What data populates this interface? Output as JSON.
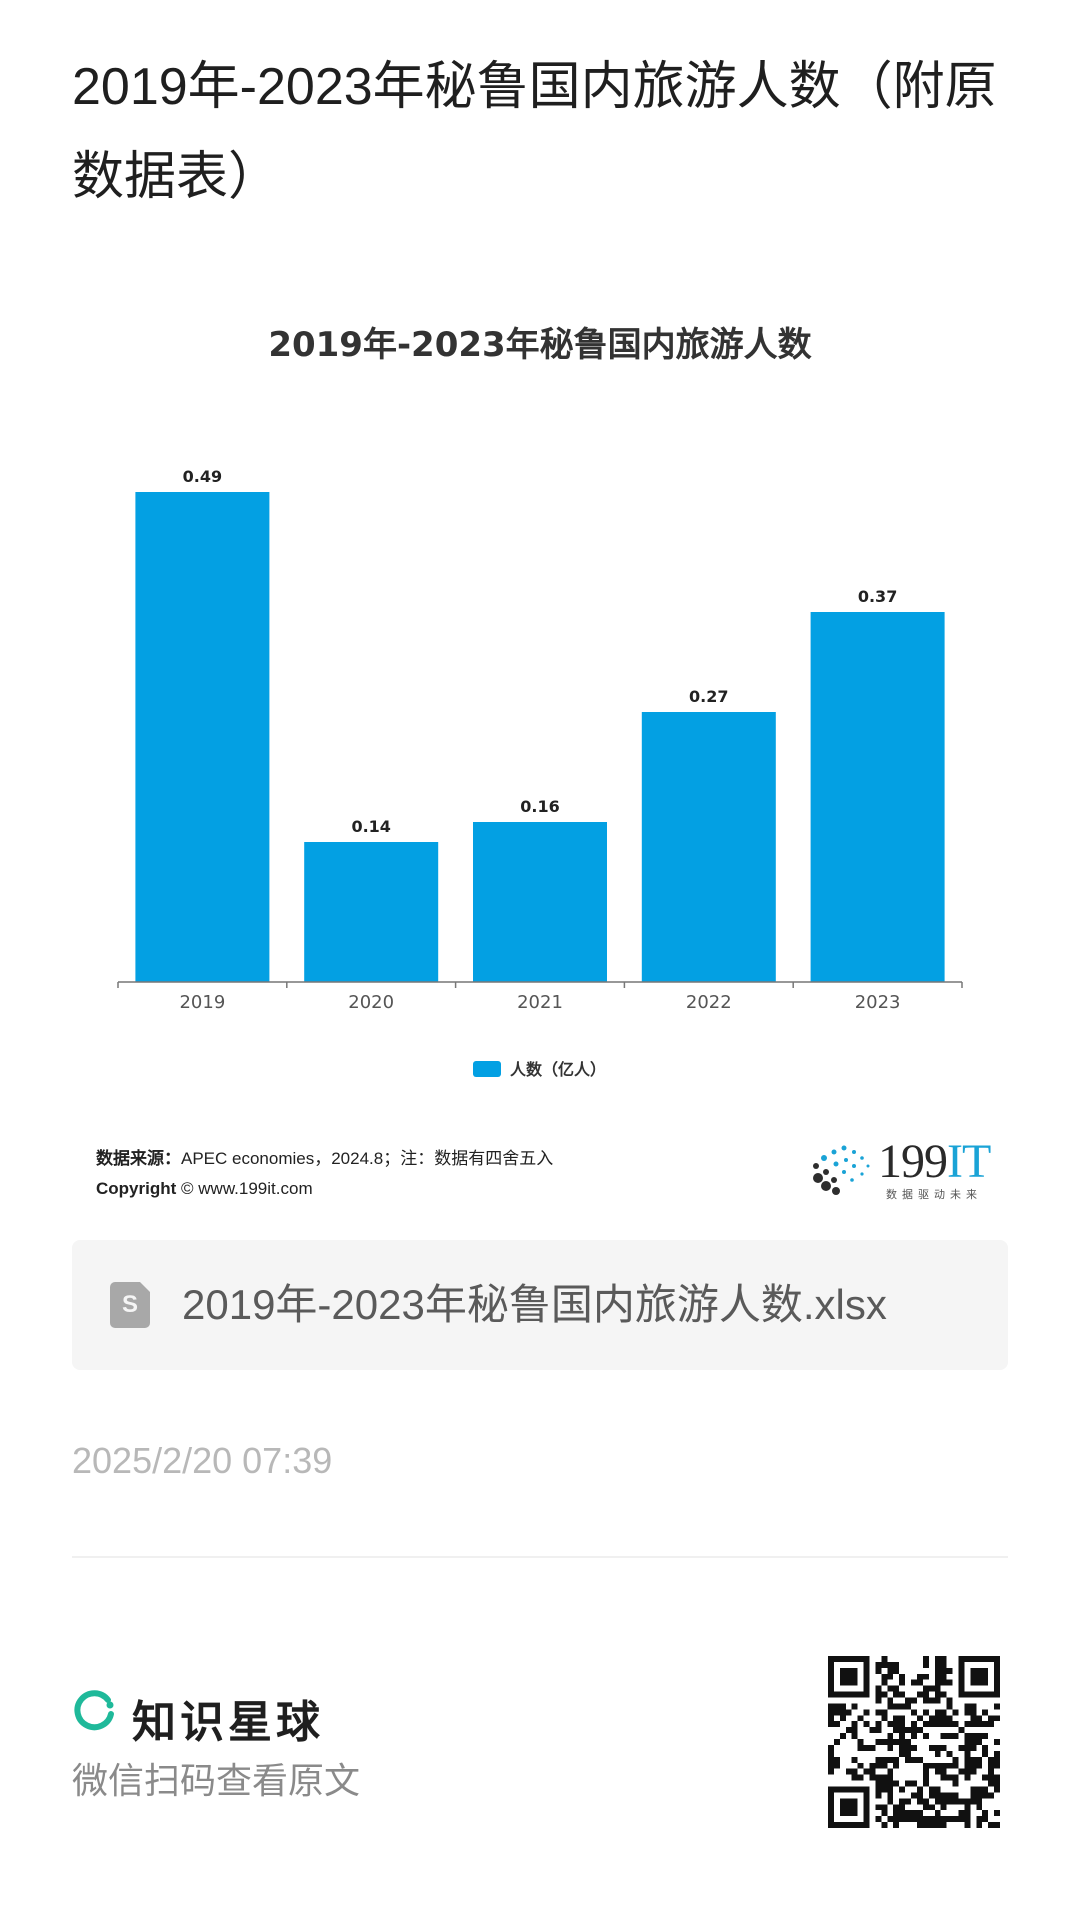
{
  "page": {
    "title": "2019年-2023年秘鲁国内旅游人数（附原数据表）"
  },
  "chart_data": {
    "type": "bar",
    "title": "2019年-2023年秘鲁国内旅游人数",
    "categories": [
      "2019",
      "2020",
      "2021",
      "2022",
      "2023"
    ],
    "series": [
      {
        "name": "人数（亿人）",
        "values": [
          0.49,
          0.14,
          0.16,
          0.27,
          0.37
        ]
      }
    ],
    "data_labels": [
      "0.49",
      "0.14",
      "0.16",
      "0.27",
      "0.37"
    ],
    "ylim": [
      0,
      0.5
    ],
    "grid": false,
    "legend": "bottom-center",
    "bar_color": "#03a0e3"
  },
  "source": {
    "label": "数据来源：",
    "text": "APEC economies，2024.8；注：数据有四舍五入",
    "copyright_label": "Copyright",
    "copyright_symbol": "©",
    "copyright_url": "www.199it.com"
  },
  "logo": {
    "text_main": "199",
    "text_accent": "IT",
    "tagline": "数据驱动未来"
  },
  "file": {
    "icon": "spreadsheet-file-icon",
    "icon_letter": "S",
    "name": "2019年-2023年秘鲁国内旅游人数.xlsx"
  },
  "meta": {
    "date": "2025/2/20 07:39"
  },
  "footer": {
    "brand_name": "知识星球",
    "brand_icon": "ring-logo-icon",
    "cta": "微信扫码查看原文",
    "qr_icon": "qr-code-icon"
  },
  "colors": {
    "accent": "#03a0e3",
    "brand_green": "#1fb99a",
    "muted_text": "#b8b8b8"
  }
}
